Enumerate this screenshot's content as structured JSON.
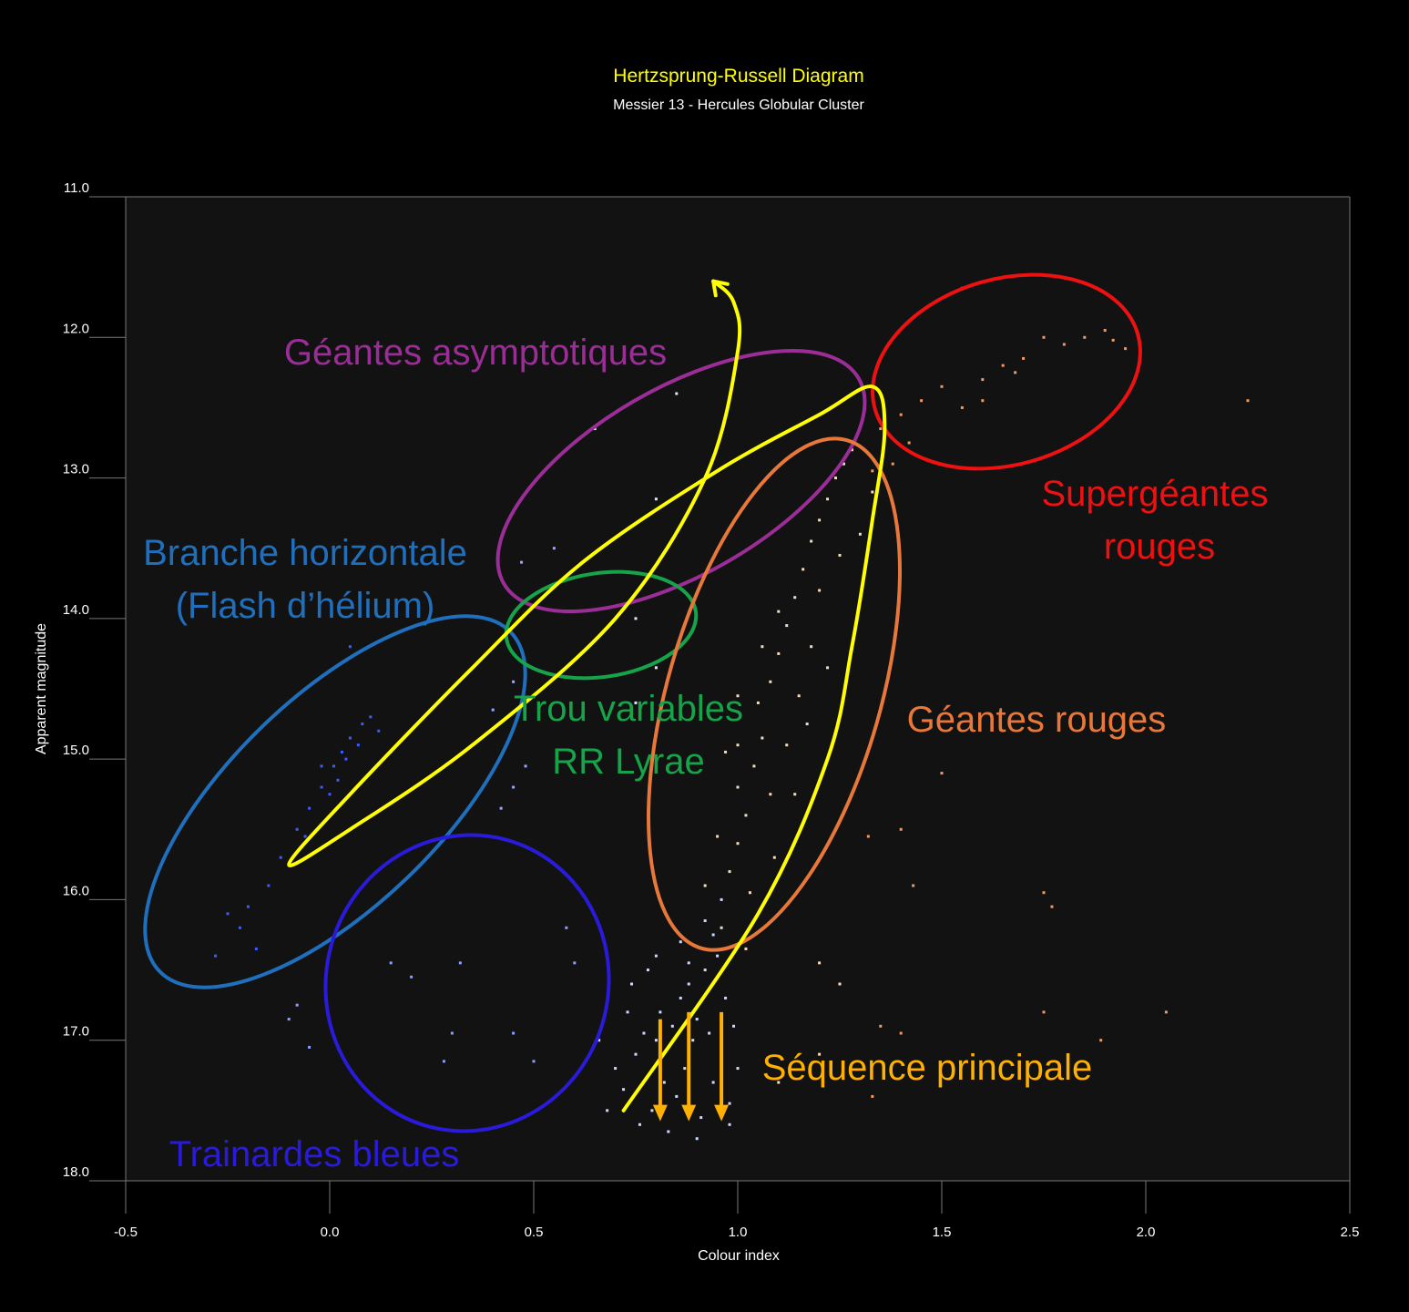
{
  "chart_data": {
    "type": "scatter",
    "title": "Hertzsprung-Russell Diagram",
    "subtitle": "Messier 13 - Hercules Globular Cluster",
    "xlabel": "Colour index",
    "ylabel": "Apparent magnitude",
    "xlim": [
      -0.5,
      2.5
    ],
    "ylim": [
      11.0,
      18.0
    ],
    "y_inverted": true,
    "x_ticks": [
      "-0.5",
      "0.0",
      "0.5",
      "1.0",
      "1.5",
      "2.0",
      "2.5"
    ],
    "y_ticks": [
      "11.0",
      "12.0",
      "13.0",
      "14.0",
      "15.0",
      "16.0",
      "17.0",
      "18.0"
    ],
    "grid": false,
    "colors": {
      "background": "#000000",
      "plot_background": "#121212",
      "title": "#ffff00",
      "evolution_track": "#ffff00",
      "main_sequence_arrows": "#ffb000"
    },
    "stars_summary": "~1000 stars; sample points listed below",
    "regions": [
      {
        "id": "agb",
        "label_lines": [
          "Géantes asymptotiques"
        ],
        "color": "#9b2d96",
        "center": [
          0.9,
          13.3
        ],
        "semi_axes_mag": 0.95
      },
      {
        "id": "horizontal-branch",
        "label_lines": [
          "Branche horizontale",
          "(Flash d’hélium)"
        ],
        "color": "#1f6fbd",
        "center": [
          0.01,
          15.4
        ]
      },
      {
        "id": "rr-lyrae-gap",
        "label_lines": [
          "Trou variables",
          "RR Lyrae"
        ],
        "color": "#16a34a",
        "center": [
          0.6,
          14.05
        ]
      },
      {
        "id": "red-supergiants",
        "label_lines": [
          "Supergéantes",
          "rouges"
        ],
        "color": "#ee1111",
        "center": [
          1.72,
          12.55
        ]
      },
      {
        "id": "red-giants",
        "label_lines": [
          "Géantes rouges"
        ],
        "color": "#e8783a",
        "center": [
          1.1,
          15.0
        ]
      },
      {
        "id": "blue-stragglers",
        "label_lines": [
          "Trainardes bleues"
        ],
        "color": "#2a1bdb",
        "center": [
          0.26,
          16.8
        ]
      },
      {
        "id": "main-sequence",
        "label_lines": [
          "Séquence principale"
        ],
        "color": "#ffb000"
      }
    ],
    "evolution_track": [
      [
        0.72,
        17.5
      ],
      [
        1.05,
        16.1
      ],
      [
        1.22,
        15.0
      ],
      [
        1.28,
        14.2
      ],
      [
        1.33,
        13.3
      ],
      [
        1.36,
        12.65
      ],
      [
        1.33,
        12.35
      ],
      [
        1.2,
        12.55
      ],
      [
        0.95,
        12.95
      ],
      [
        0.62,
        13.6
      ],
      [
        0.35,
        14.35
      ],
      [
        0.05,
        15.25
      ],
      [
        -0.1,
        15.75
      ],
      [
        0.05,
        15.5
      ],
      [
        0.35,
        14.9
      ],
      [
        0.7,
        14.0
      ],
      [
        0.92,
        13.0
      ],
      [
        1.0,
        12.1
      ],
      [
        0.99,
        11.75
      ],
      [
        0.94,
        11.6
      ]
    ],
    "main_sequence_arrows": [
      [
        0.81,
        16.85,
        17.55
      ],
      [
        0.88,
        16.8,
        17.55
      ],
      [
        0.96,
        16.8,
        17.55
      ]
    ],
    "stars": {
      "main_sequence": [
        [
          0.7,
          17.2
        ],
        [
          0.72,
          17.35
        ],
        [
          0.75,
          17.1
        ],
        [
          0.77,
          16.95
        ],
        [
          0.79,
          17.5
        ],
        [
          0.8,
          17.0
        ],
        [
          0.81,
          16.8
        ],
        [
          0.82,
          17.3
        ],
        [
          0.84,
          16.9
        ],
        [
          0.85,
          17.4
        ],
        [
          0.86,
          16.7
        ],
        [
          0.87,
          17.2
        ],
        [
          0.88,
          16.6
        ],
        [
          0.89,
          17.0
        ],
        [
          0.9,
          16.85
        ],
        [
          0.91,
          17.55
        ],
        [
          0.92,
          16.5
        ],
        [
          0.93,
          16.95
        ],
        [
          0.94,
          17.3
        ],
        [
          0.95,
          16.4
        ],
        [
          0.96,
          17.1
        ],
        [
          0.97,
          16.7
        ],
        [
          0.98,
          17.45
        ],
        [
          0.99,
          16.9
        ],
        [
          1.0,
          17.2
        ],
        [
          0.73,
          16.8
        ],
        [
          0.76,
          17.6
        ],
        [
          0.83,
          17.65
        ],
        [
          0.9,
          17.7
        ],
        [
          0.98,
          17.6
        ],
        [
          0.68,
          17.5
        ],
        [
          0.66,
          17.0
        ],
        [
          0.74,
          16.6
        ],
        [
          0.78,
          16.5
        ],
        [
          0.86,
          16.3
        ],
        [
          0.92,
          16.15
        ],
        [
          0.96,
          16.0
        ],
        [
          0.88,
          16.45
        ],
        [
          0.94,
          16.25
        ],
        [
          0.8,
          16.4
        ]
      ],
      "red_giants": [
        [
          0.98,
          15.8
        ],
        [
          1.0,
          15.6
        ],
        [
          1.02,
          15.4
        ],
        [
          1.0,
          15.2
        ],
        [
          1.04,
          15.05
        ],
        [
          1.06,
          14.85
        ],
        [
          1.05,
          14.6
        ],
        [
          1.08,
          14.45
        ],
        [
          1.1,
          14.25
        ],
        [
          1.12,
          14.05
        ],
        [
          1.14,
          13.85
        ],
        [
          1.16,
          13.65
        ],
        [
          1.18,
          13.45
        ],
        [
          1.2,
          13.3
        ],
        [
          1.22,
          13.15
        ],
        [
          1.24,
          13.0
        ],
        [
          1.26,
          12.9
        ],
        [
          1.28,
          12.8
        ],
        [
          1.03,
          15.95
        ],
        [
          0.95,
          15.55
        ],
        [
          1.08,
          15.25
        ],
        [
          1.12,
          14.9
        ],
        [
          1.15,
          14.55
        ],
        [
          1.18,
          14.2
        ],
        [
          0.97,
          14.95
        ],
        [
          1.0,
          14.55
        ],
        [
          1.06,
          14.2
        ],
        [
          1.1,
          13.95
        ],
        [
          1.2,
          13.8
        ],
        [
          1.25,
          13.55
        ],
        [
          0.92,
          15.9
        ],
        [
          0.96,
          16.2
        ],
        [
          1.02,
          16.35
        ],
        [
          1.09,
          15.7
        ],
        [
          1.14,
          15.25
        ],
        [
          1.17,
          14.75
        ],
        [
          1.22,
          14.35
        ],
        [
          1.3,
          13.4
        ],
        [
          1.33,
          13.1
        ],
        [
          1.0,
          14.9
        ]
      ],
      "supergiants": [
        [
          1.35,
          12.65
        ],
        [
          1.4,
          12.55
        ],
        [
          1.45,
          12.45
        ],
        [
          1.5,
          12.35
        ],
        [
          1.55,
          12.5
        ],
        [
          1.6,
          12.3
        ],
        [
          1.65,
          12.2
        ],
        [
          1.7,
          12.15
        ],
        [
          1.75,
          12.0
        ],
        [
          1.8,
          12.05
        ],
        [
          1.85,
          12.0
        ],
        [
          1.9,
          11.95
        ],
        [
          1.92,
          12.02
        ],
        [
          1.95,
          12.08
        ],
        [
          1.55,
          11.65
        ],
        [
          1.42,
          12.75
        ],
        [
          1.38,
          12.9
        ],
        [
          1.33,
          12.95
        ],
        [
          1.6,
          12.45
        ],
        [
          1.68,
          12.25
        ],
        [
          2.25,
          12.45
        ]
      ],
      "horizontal_branch": [
        [
          -0.15,
          15.9
        ],
        [
          -0.12,
          15.7
        ],
        [
          -0.08,
          15.5
        ],
        [
          -0.05,
          15.35
        ],
        [
          -0.02,
          15.2
        ],
        [
          0.01,
          15.05
        ],
        [
          0.03,
          14.95
        ],
        [
          0.05,
          14.85
        ],
        [
          0.08,
          14.75
        ],
        [
          0.1,
          14.7
        ],
        [
          0.12,
          14.8
        ],
        [
          -0.2,
          16.05
        ],
        [
          -0.22,
          16.2
        ],
        [
          -0.18,
          16.35
        ],
        [
          0.0,
          15.25
        ],
        [
          0.04,
          15.0
        ],
        [
          -0.06,
          15.55
        ],
        [
          -0.1,
          15.75
        ],
        [
          0.07,
          14.9
        ],
        [
          0.15,
          14.95
        ],
        [
          -0.25,
          16.1
        ],
        [
          -0.28,
          16.4
        ],
        [
          0.05,
          14.2
        ],
        [
          -0.02,
          15.05
        ],
        [
          0.02,
          15.15
        ]
      ],
      "blue_stragglers": [
        [
          0.2,
          16.55
        ],
        [
          0.15,
          16.45
        ],
        [
          0.32,
          16.45
        ],
        [
          0.3,
          16.95
        ],
        [
          0.28,
          17.15
        ],
        [
          0.5,
          17.15
        ],
        [
          -0.08,
          16.75
        ],
        [
          -0.1,
          16.85
        ],
        [
          -0.05,
          17.05
        ],
        [
          0.45,
          16.95
        ],
        [
          0.58,
          16.2
        ],
        [
          0.6,
          16.45
        ]
      ],
      "scattered": [
        [
          0.55,
          13.5
        ],
        [
          0.65,
          12.65
        ],
        [
          0.85,
          12.4
        ],
        [
          0.8,
          13.15
        ],
        [
          0.75,
          14.0
        ],
        [
          0.45,
          14.45
        ],
        [
          0.4,
          14.65
        ],
        [
          0.47,
          13.6
        ],
        [
          0.45,
          15.2
        ],
        [
          0.42,
          15.35
        ],
        [
          0.8,
          14.35
        ],
        [
          0.75,
          14.6
        ],
        [
          0.48,
          15.05
        ],
        [
          1.4,
          15.5
        ],
        [
          1.5,
          15.1
        ],
        [
          1.43,
          15.9
        ],
        [
          1.75,
          15.95
        ],
        [
          1.77,
          16.05
        ],
        [
          1.75,
          16.8
        ],
        [
          2.05,
          16.8
        ],
        [
          1.35,
          16.9
        ],
        [
          1.4,
          16.95
        ],
        [
          1.89,
          17.0
        ],
        [
          1.25,
          16.6
        ],
        [
          1.2,
          16.45
        ],
        [
          1.1,
          17.3
        ],
        [
          1.2,
          17.1
        ],
        [
          1.33,
          17.4
        ],
        [
          1.32,
          15.55
        ]
      ]
    }
  }
}
